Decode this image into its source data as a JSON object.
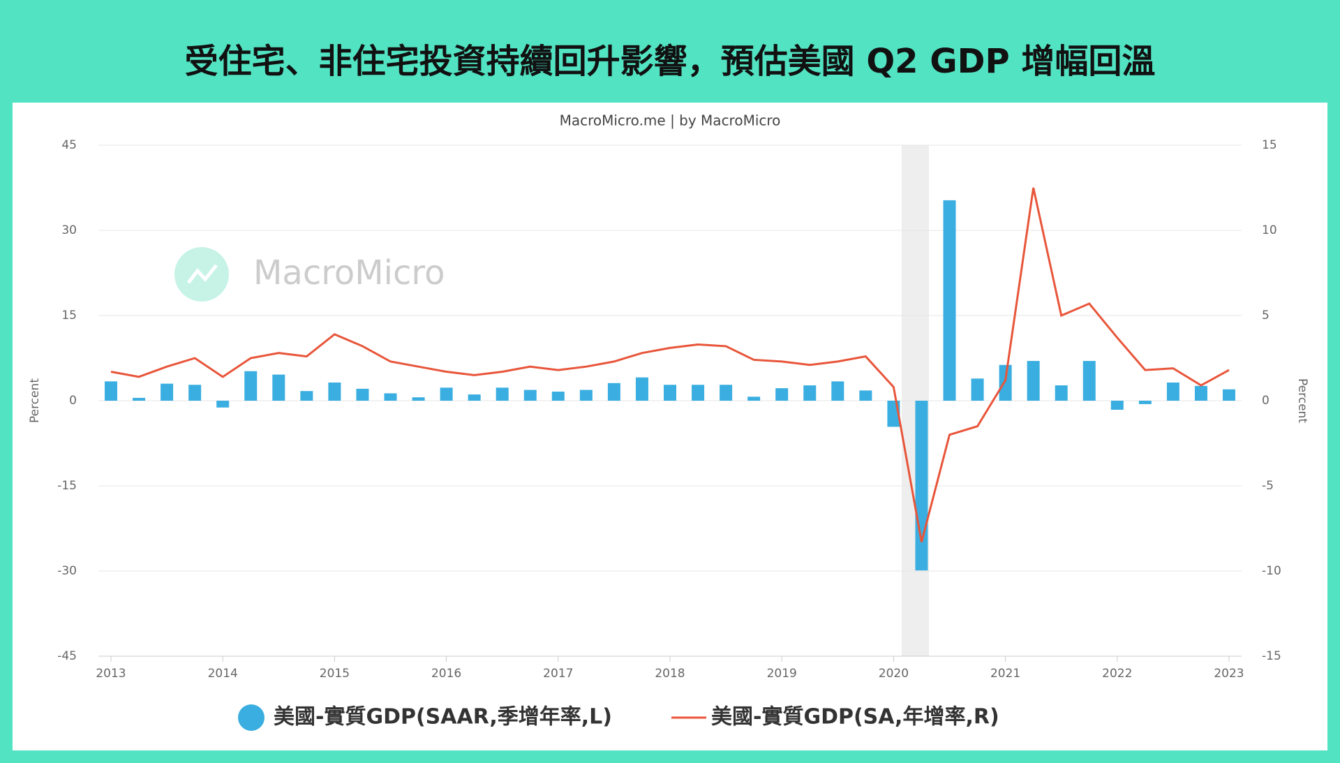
{
  "header": {
    "title": "受住宅、非住宅投資持續回升影響，預估美國 Q2 GDP 增幅回溫"
  },
  "chart_data": {
    "type": "bar_line",
    "source": "MacroMicro.me | by MacroMicro",
    "watermark": "MacroMicro",
    "categories": [
      "2013",
      null,
      null,
      null,
      "2014",
      null,
      null,
      null,
      "2015",
      null,
      null,
      null,
      "2016",
      null,
      null,
      null,
      "2017",
      null,
      null,
      null,
      "2018",
      null,
      null,
      null,
      "2019",
      null,
      null,
      null,
      "2020",
      null,
      null,
      null,
      "2021",
      null,
      null,
      null,
      "2022",
      null,
      null,
      null,
      "2023"
    ],
    "series": [
      {
        "name": "美國-實質GDP(SAAR,季增年率,L)",
        "type": "bar",
        "axis": "y",
        "color": "#3aaee0",
        "values": [
          3.4,
          0.5,
          3.0,
          2.8,
          -1.2,
          5.2,
          4.6,
          1.7,
          3.2,
          2.1,
          1.3,
          0.6,
          2.3,
          1.1,
          2.3,
          1.9,
          1.6,
          1.9,
          3.1,
          4.1,
          2.8,
          2.8,
          2.8,
          0.7,
          2.2,
          2.7,
          3.4,
          1.8,
          -4.6,
          -29.9,
          35.3,
          3.9,
          6.3,
          7.0,
          2.7,
          7.0,
          -1.6,
          -0.6,
          3.2,
          2.6,
          2.0
        ]
      },
      {
        "name": "美國-實質GDP(SA,年增率,R)",
        "type": "line",
        "axis": "y2",
        "color": "#e8553a",
        "values": [
          1.7,
          1.4,
          2.0,
          2.5,
          1.4,
          2.5,
          2.8,
          2.6,
          3.9,
          3.2,
          2.3,
          2.0,
          1.7,
          1.5,
          1.7,
          2.0,
          1.8,
          2.0,
          2.3,
          2.8,
          3.1,
          3.3,
          3.2,
          2.4,
          2.3,
          2.1,
          2.3,
          2.6,
          0.8,
          -8.3,
          -2.0,
          -1.5,
          1.2,
          12.5,
          5.0,
          5.7,
          3.7,
          1.8,
          1.9,
          0.9,
          1.8
        ]
      }
    ],
    "ylabel": "Percent",
    "y2label": "Percent",
    "ylim": [
      -45,
      45
    ],
    "yticks": [
      -45,
      -30,
      -15,
      0,
      15,
      30,
      45
    ],
    "y2lim": [
      -15,
      15
    ],
    "y2ticks": [
      -15,
      -10,
      -5,
      0,
      5,
      10,
      15
    ],
    "grid": true
  }
}
